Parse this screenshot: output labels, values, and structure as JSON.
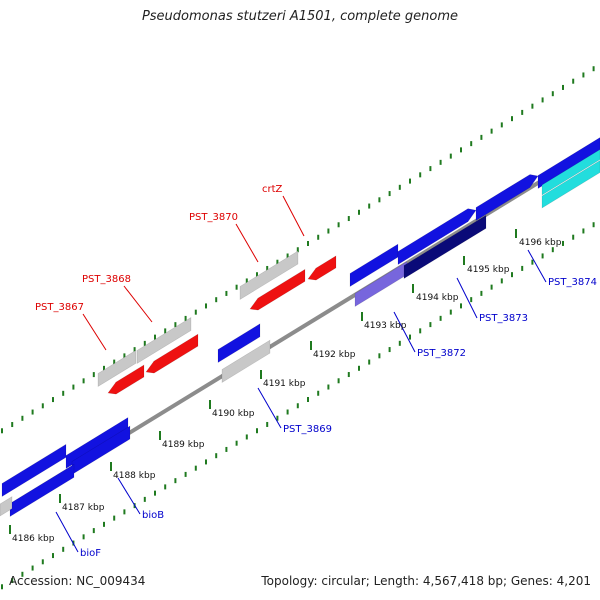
{
  "title": "Pseudomonas stutzeri A1501, complete genome",
  "footer": {
    "accession": "Accession: NC_009434",
    "summary": "Topology: circular; Length: 4,567,418 bp; Genes: 4,201"
  },
  "colors": {
    "backbone": "#8c8c8c",
    "tick": "#1f7a1f",
    "gene_blue": "#1212e0",
    "gene_red": "#ee1111",
    "gene_grey": "#c8c8c8",
    "gene_navy": "#0a0a78",
    "gene_purple": "#7766dd",
    "gene_cyan": "#22dddd",
    "label_red": "#dd0000",
    "label_blue": "#0000cc"
  },
  "kbp_labels": [
    "4186 kbp",
    "4187 kbp",
    "4188 kbp",
    "4189 kbp",
    "4190 kbp",
    "4191 kbp",
    "4192 kbp",
    "4193 kbp",
    "4194 kbp",
    "4195 kbp",
    "4196 kbp"
  ],
  "gene_labels": {
    "crtZ": "crtZ",
    "pst3870": "PST_3870",
    "pst3868": "PST_3868",
    "pst3867": "PST_3867",
    "pst3874": "PST_3874",
    "pst3873": "PST_3873",
    "pst3872": "PST_3872",
    "pst3869": "PST_3869",
    "bioB": "bioB",
    "bioF": "bioF"
  }
}
